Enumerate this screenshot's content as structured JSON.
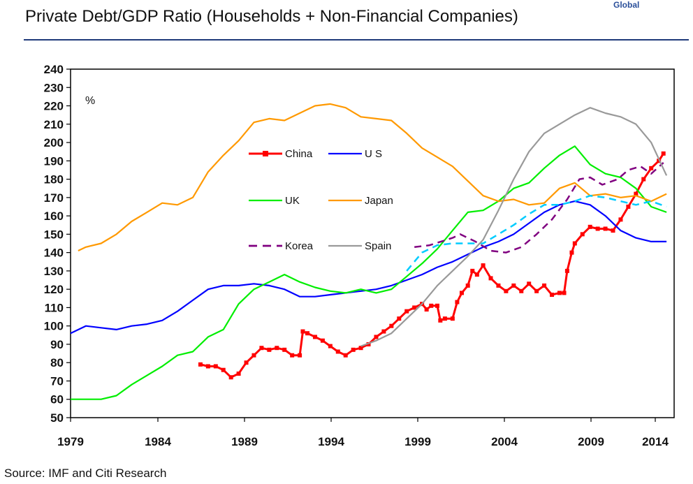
{
  "header": {
    "title": "Private Debt/GDP Ratio (Households + Non-Financial Companies)",
    "tag": "Global"
  },
  "footer": {
    "source": "Source: IMF and Citi Research"
  },
  "chart_data": {
    "type": "line",
    "title": "Private Debt/GDP Ratio (Households + Non-Financial Companies)",
    "unit_label": "%",
    "xlabel": "",
    "ylabel": "",
    "xlim": [
      1979,
      2015.5
    ],
    "ylim": [
      50,
      240
    ],
    "x_ticks": [
      1979,
      1984,
      1989,
      1994,
      1999,
      2004,
      2009,
      2014
    ],
    "y_ticks": [
      50,
      60,
      70,
      80,
      90,
      100,
      110,
      120,
      130,
      140,
      150,
      160,
      170,
      180,
      190,
      200,
      210,
      220,
      230,
      240
    ],
    "grid": false,
    "legend_position": "inside-center",
    "series": [
      {
        "name": "China",
        "color": "#ff0000",
        "style": "solid-square",
        "points": [
          [
            1987.5,
            79
          ],
          [
            1988,
            78
          ],
          [
            1988.5,
            78
          ],
          [
            1989,
            76
          ],
          [
            1989.5,
            72
          ],
          [
            1990,
            74
          ],
          [
            1990.5,
            80
          ],
          [
            1991,
            84
          ],
          [
            1991.5,
            88
          ],
          [
            1992,
            87
          ],
          [
            1992.5,
            88
          ],
          [
            1993,
            87
          ],
          [
            1993.5,
            84
          ],
          [
            1994,
            84
          ],
          [
            1994.2,
            97
          ],
          [
            1994.5,
            96
          ],
          [
            1995,
            94
          ],
          [
            1995.5,
            92
          ],
          [
            1996,
            89
          ],
          [
            1996.5,
            86
          ],
          [
            1997,
            84
          ],
          [
            1997.5,
            87
          ],
          [
            1998,
            88
          ],
          [
            1998.5,
            90
          ],
          [
            1999,
            94
          ],
          [
            1999.5,
            97
          ],
          [
            2000,
            100
          ],
          [
            2000.5,
            104
          ],
          [
            2001,
            108
          ],
          [
            2001.5,
            110
          ],
          [
            2002,
            112
          ],
          [
            2002.3,
            109
          ],
          [
            2002.6,
            111
          ],
          [
            2003,
            111
          ],
          [
            2003.2,
            103
          ],
          [
            2003.5,
            104
          ],
          [
            2004,
            104
          ],
          [
            2004.3,
            113
          ],
          [
            2004.6,
            118
          ],
          [
            2005,
            122
          ],
          [
            2005.3,
            130
          ],
          [
            2005.6,
            128
          ],
          [
            2006,
            133
          ],
          [
            2006.5,
            126
          ],
          [
            2007,
            122
          ],
          [
            2007.5,
            119
          ],
          [
            2008,
            122
          ],
          [
            2008.5,
            119
          ],
          [
            2009,
            123
          ],
          [
            2009.5,
            119
          ],
          [
            2010,
            122
          ],
          [
            2010.5,
            117
          ],
          [
            2011,
            118
          ],
          [
            2011.3,
            118
          ],
          [
            2011.5,
            130
          ],
          [
            2011.8,
            140
          ],
          [
            2012,
            145
          ],
          [
            2012.5,
            150
          ],
          [
            2013,
            154
          ],
          [
            2013.5,
            153
          ],
          [
            2014,
            153
          ],
          [
            2014.5,
            152
          ],
          [
            2015,
            158
          ],
          [
            2015.5,
            165
          ],
          [
            2016,
            172
          ],
          [
            2016.5,
            180
          ],
          [
            2017,
            186
          ],
          [
            2017.5,
            190
          ],
          [
            2017.8,
            194
          ]
        ]
      },
      {
        "name": "US",
        "color": "#0000ff",
        "style": "solid",
        "points": [
          [
            1979,
            96
          ],
          [
            1980,
            100
          ],
          [
            1981,
            99
          ],
          [
            1982,
            98
          ],
          [
            1983,
            100
          ],
          [
            1984,
            101
          ],
          [
            1985,
            103
          ],
          [
            1986,
            108
          ],
          [
            1987,
            114
          ],
          [
            1988,
            120
          ],
          [
            1989,
            122
          ],
          [
            1990,
            122
          ],
          [
            1991,
            123
          ],
          [
            1992,
            122
          ],
          [
            1993,
            120
          ],
          [
            1994,
            116
          ],
          [
            1995,
            116
          ],
          [
            1996,
            117
          ],
          [
            1997,
            118
          ],
          [
            1998,
            119
          ],
          [
            1999,
            120
          ],
          [
            2000,
            122
          ],
          [
            2001,
            125
          ],
          [
            2002,
            128
          ],
          [
            2003,
            132
          ],
          [
            2004,
            135
          ],
          [
            2005,
            139
          ],
          [
            2006,
            143
          ],
          [
            2007,
            146
          ],
          [
            2008,
            150
          ],
          [
            2009,
            156
          ],
          [
            2010,
            162
          ],
          [
            2011,
            166
          ],
          [
            2012,
            168
          ],
          [
            2013,
            166
          ],
          [
            2014,
            160
          ],
          [
            2015,
            152
          ],
          [
            2016,
            148
          ],
          [
            2017,
            146
          ],
          [
            2018,
            146
          ]
        ]
      },
      {
        "name": "UK",
        "color": "#00ee00",
        "style": "solid",
        "points": [
          [
            1979,
            60
          ],
          [
            1980,
            60
          ],
          [
            1981,
            60
          ],
          [
            1982,
            62
          ],
          [
            1983,
            68
          ],
          [
            1984,
            73
          ],
          [
            1985,
            78
          ],
          [
            1986,
            84
          ],
          [
            1987,
            86
          ],
          [
            1988,
            94
          ],
          [
            1989,
            98
          ],
          [
            1990,
            112
          ],
          [
            1991,
            120
          ],
          [
            1992,
            124
          ],
          [
            1993,
            128
          ],
          [
            1994,
            124
          ],
          [
            1995,
            121
          ],
          [
            1996,
            119
          ],
          [
            1997,
            118
          ],
          [
            1998,
            120
          ],
          [
            1999,
            118
          ],
          [
            2000,
            120
          ],
          [
            2001,
            127
          ],
          [
            2002,
            134
          ],
          [
            2003,
            142
          ],
          [
            2004,
            152
          ],
          [
            2005,
            162
          ],
          [
            2006,
            163
          ],
          [
            2007,
            168
          ],
          [
            2008,
            175
          ],
          [
            2009,
            178
          ],
          [
            2010,
            186
          ],
          [
            2011,
            193
          ],
          [
            2012,
            198
          ],
          [
            2013,
            188
          ],
          [
            2014,
            183
          ],
          [
            2015,
            181
          ],
          [
            2016,
            175
          ],
          [
            2017,
            165
          ],
          [
            2018,
            162
          ]
        ]
      },
      {
        "name": "Japan",
        "color": "#ff9900",
        "style": "solid",
        "points": [
          [
            1979.5,
            141
          ],
          [
            1980,
            143
          ],
          [
            1981,
            145
          ],
          [
            1982,
            150
          ],
          [
            1983,
            157
          ],
          [
            1984,
            162
          ],
          [
            1985,
            167
          ],
          [
            1986,
            166
          ],
          [
            1987,
            170
          ],
          [
            1988,
            184
          ],
          [
            1989,
            193
          ],
          [
            1990,
            201
          ],
          [
            1991,
            211
          ],
          [
            1992,
            213
          ],
          [
            1993,
            212
          ],
          [
            1994,
            216
          ],
          [
            1995,
            220
          ],
          [
            1996,
            221
          ],
          [
            1997,
            219
          ],
          [
            1998,
            214
          ],
          [
            1999,
            213
          ],
          [
            2000,
            212
          ],
          [
            2001,
            205
          ],
          [
            2002,
            197
          ],
          [
            2003,
            192
          ],
          [
            2004,
            187
          ],
          [
            2005,
            179
          ],
          [
            2006,
            171
          ],
          [
            2007,
            168
          ],
          [
            2008,
            169
          ],
          [
            2009,
            166
          ],
          [
            2010,
            167
          ],
          [
            2011,
            175
          ],
          [
            2012,
            178
          ],
          [
            2013,
            171
          ],
          [
            2014,
            172
          ],
          [
            2015,
            170
          ],
          [
            2016,
            171
          ],
          [
            2017,
            168
          ],
          [
            2018,
            172
          ]
        ]
      },
      {
        "name": "Korea",
        "color": "#800080",
        "style": "dashed",
        "points": [
          [
            2001.5,
            143
          ],
          [
            2002.5,
            144
          ],
          [
            2004,
            148
          ],
          [
            2004.5,
            150
          ],
          [
            2005.5,
            146
          ],
          [
            2006.5,
            141
          ],
          [
            2007.5,
            140
          ],
          [
            2008.5,
            143
          ],
          [
            2009.5,
            150
          ],
          [
            2010.5,
            158
          ],
          [
            2011.5,
            169
          ],
          [
            2012.3,
            180
          ],
          [
            2013,
            181
          ],
          [
            2013.8,
            177
          ],
          [
            2014.8,
            180
          ],
          [
            2015.5,
            185
          ],
          [
            2016.3,
            187
          ],
          [
            2017,
            183
          ],
          [
            2017.8,
            189
          ]
        ]
      },
      {
        "name": "",
        "color": "#00ccff",
        "style": "dashed",
        "points": [
          [
            2001,
            130
          ],
          [
            2002,
            140
          ],
          [
            2003,
            144
          ],
          [
            2004,
            145
          ],
          [
            2005,
            145
          ],
          [
            2006,
            145
          ],
          [
            2007,
            150
          ],
          [
            2008,
            155
          ],
          [
            2009,
            161
          ],
          [
            2010,
            166
          ],
          [
            2011,
            166
          ],
          [
            2012,
            168
          ],
          [
            2013,
            171
          ],
          [
            2014,
            170
          ],
          [
            2015,
            168
          ],
          [
            2016,
            166
          ],
          [
            2017,
            168
          ],
          [
            2018,
            165
          ]
        ]
      },
      {
        "name": "Spain",
        "color": "#999999",
        "style": "solid",
        "points": [
          [
            1998,
            89
          ],
          [
            1999,
            92
          ],
          [
            2000,
            96
          ],
          [
            2001,
            104
          ],
          [
            2002,
            112
          ],
          [
            2003,
            122
          ],
          [
            2004,
            130
          ],
          [
            2005,
            138
          ],
          [
            2006,
            147
          ],
          [
            2007,
            163
          ],
          [
            2008,
            180
          ],
          [
            2009,
            195
          ],
          [
            2010,
            205
          ],
          [
            2011,
            210
          ],
          [
            2012,
            215
          ],
          [
            2013,
            219
          ],
          [
            2014,
            216
          ],
          [
            2015,
            214
          ],
          [
            2016,
            210
          ],
          [
            2017,
            200
          ],
          [
            2018,
            182
          ]
        ]
      }
    ],
    "legend": [
      {
        "name": "China",
        "color": "#ff0000",
        "style": "solid-square"
      },
      {
        "name": "U S",
        "color": "#0000ff",
        "style": "solid"
      },
      {
        "name": "UK",
        "color": "#00ee00",
        "style": "solid"
      },
      {
        "name": "Japan",
        "color": "#ff9900",
        "style": "solid"
      },
      {
        "name": "Korea",
        "color": "#800080",
        "style": "dashed"
      },
      {
        "name": "Spain",
        "color": "#999999",
        "style": "solid"
      }
    ]
  }
}
